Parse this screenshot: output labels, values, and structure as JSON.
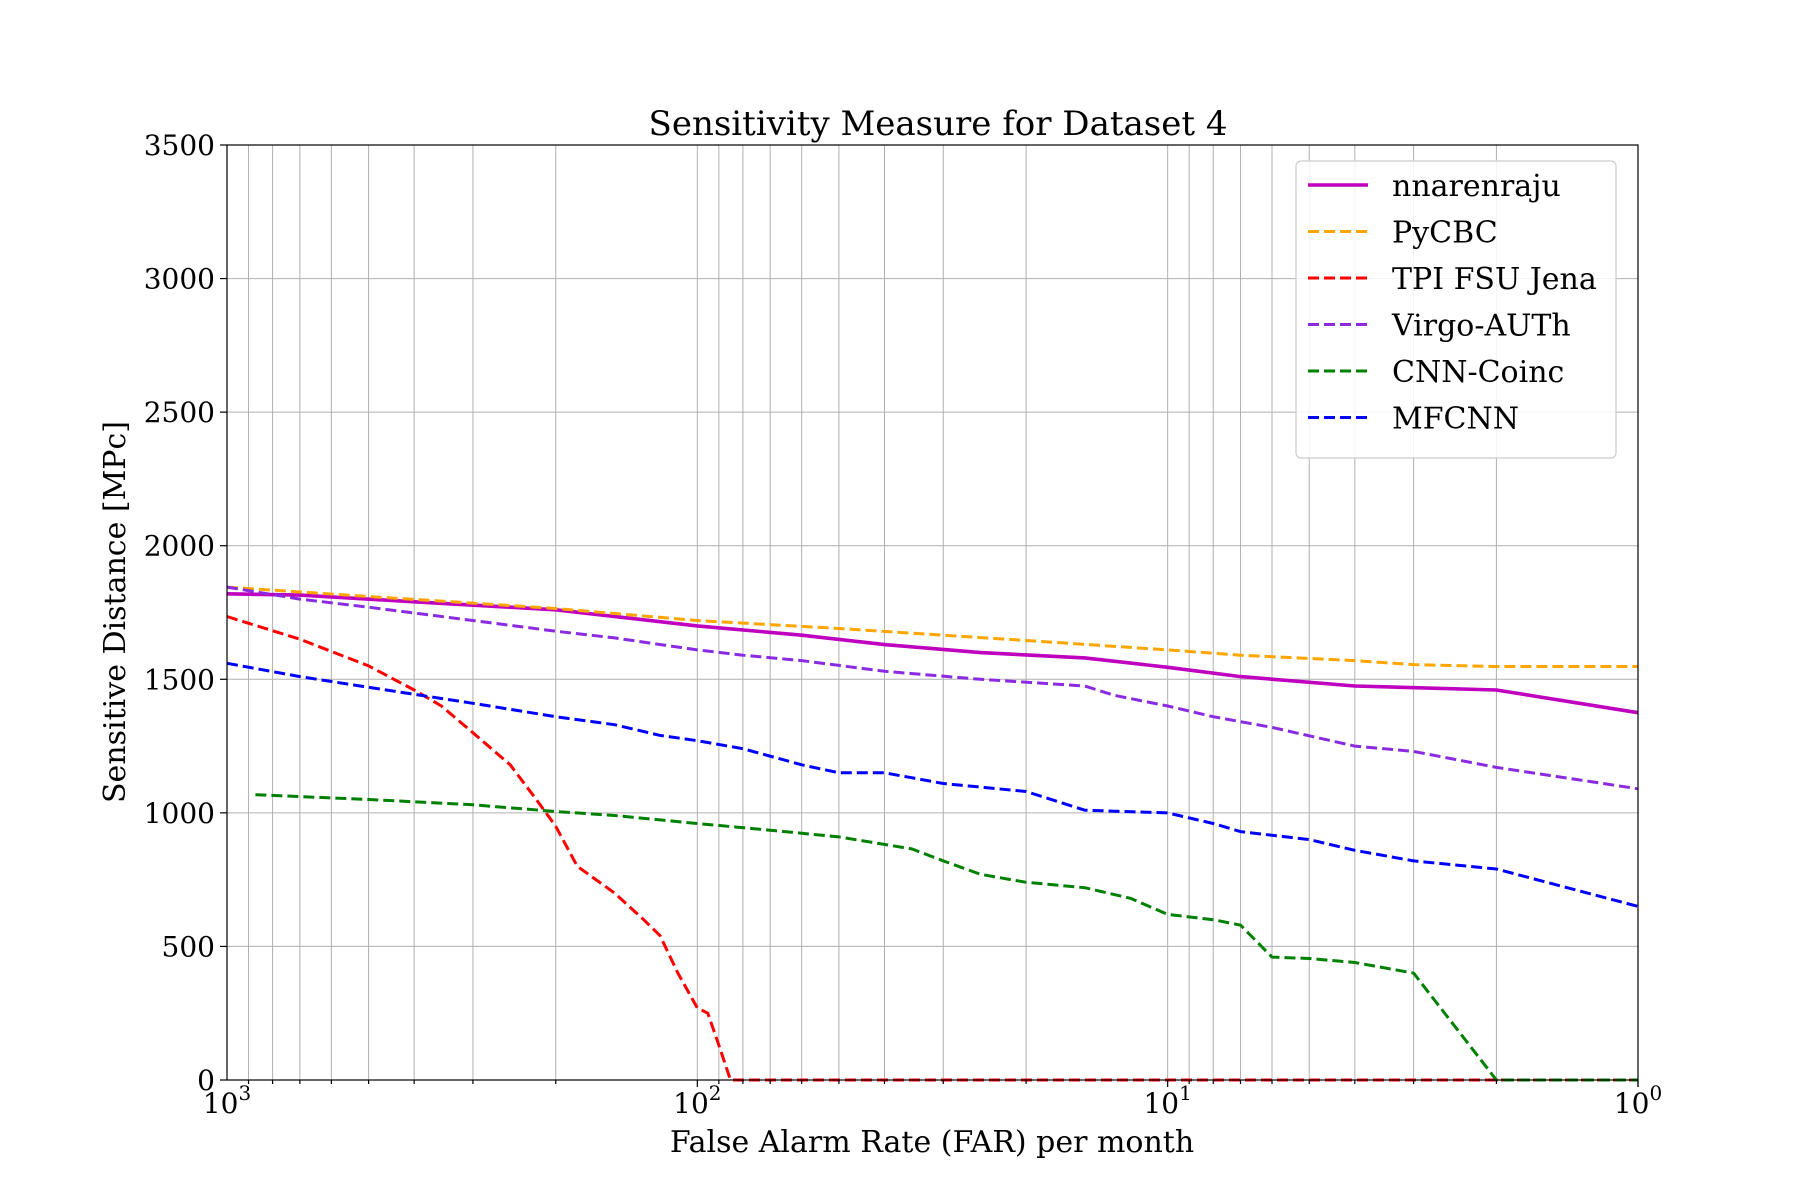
{
  "chart_data": {
    "type": "line",
    "title": "Sensitivity Measure for Dataset 4",
    "xlabel": "False Alarm Rate (FAR) per month",
    "ylabel": "Sensitive Distance [MPc]",
    "xscale": "log",
    "xaxis_direction": "reversed",
    "xlim": [
      1000,
      1
    ],
    "ylim": [
      0,
      3500
    ],
    "xticks": [
      {
        "base": "10",
        "exp": "3"
      },
      {
        "base": "10",
        "exp": "2"
      },
      {
        "base": "10",
        "exp": "1"
      },
      {
        "base": "10",
        "exp": "0"
      }
    ],
    "yticks": [
      "0",
      "500",
      "1000",
      "1500",
      "2000",
      "2500",
      "3000",
      "3500"
    ],
    "grid": true,
    "legend_position": "top-right",
    "series": [
      {
        "name": "nnarenraju",
        "color": "#bf00bf",
        "style": "solid",
        "points": [
          [
            1000,
            1820
          ],
          [
            700,
            1815
          ],
          [
            400,
            1790
          ],
          [
            200,
            1760
          ],
          [
            100,
            1700
          ],
          [
            60,
            1665
          ],
          [
            40,
            1630
          ],
          [
            25,
            1600
          ],
          [
            15,
            1580
          ],
          [
            10,
            1545
          ],
          [
            7,
            1510
          ],
          [
            4,
            1475
          ],
          [
            2,
            1460
          ],
          [
            1,
            1375
          ]
        ]
      },
      {
        "name": "PyCBC",
        "color": "#ffa500",
        "style": "dashed",
        "points": [
          [
            1000,
            1845
          ],
          [
            500,
            1810
          ],
          [
            300,
            1785
          ],
          [
            200,
            1765
          ],
          [
            100,
            1720
          ],
          [
            50,
            1690
          ],
          [
            30,
            1665
          ],
          [
            20,
            1645
          ],
          [
            10,
            1610
          ],
          [
            7,
            1590
          ],
          [
            4,
            1570
          ],
          [
            3,
            1555
          ],
          [
            2,
            1548
          ],
          [
            1,
            1548
          ]
        ]
      },
      {
        "name": "TPI FSU Jena",
        "color": "#ff0000",
        "style": "dashed",
        "points": [
          [
            1000,
            1735
          ],
          [
            700,
            1650
          ],
          [
            500,
            1550
          ],
          [
            400,
            1460
          ],
          [
            350,
            1400
          ],
          [
            300,
            1300
          ],
          [
            250,
            1180
          ],
          [
            220,
            1050
          ],
          [
            200,
            950
          ],
          [
            180,
            800
          ],
          [
            150,
            700
          ],
          [
            130,
            600
          ],
          [
            120,
            540
          ],
          [
            110,
            400
          ],
          [
            100,
            270
          ],
          [
            95,
            250
          ],
          [
            90,
            130
          ],
          [
            85,
            0
          ],
          [
            1,
            0
          ]
        ]
      },
      {
        "name": "Virgo-AUTh",
        "color": "#8a2be2",
        "style": "dashed",
        "points": [
          [
            1000,
            1845
          ],
          [
            700,
            1800
          ],
          [
            500,
            1770
          ],
          [
            300,
            1720
          ],
          [
            200,
            1680
          ],
          [
            150,
            1655
          ],
          [
            100,
            1610
          ],
          [
            80,
            1590
          ],
          [
            60,
            1570
          ],
          [
            40,
            1530
          ],
          [
            25,
            1500
          ],
          [
            15,
            1475
          ],
          [
            13,
            1440
          ],
          [
            10,
            1400
          ],
          [
            8,
            1360
          ],
          [
            6,
            1320
          ],
          [
            4,
            1250
          ],
          [
            3,
            1230
          ],
          [
            2,
            1170
          ],
          [
            1,
            1090
          ]
        ]
      },
      {
        "name": "CNN-Coinc",
        "color": "#008000",
        "style": "dashed",
        "points": [
          [
            870,
            1068
          ],
          [
            500,
            1050
          ],
          [
            300,
            1030
          ],
          [
            200,
            1005
          ],
          [
            150,
            990
          ],
          [
            100,
            960
          ],
          [
            70,
            935
          ],
          [
            50,
            910
          ],
          [
            35,
            865
          ],
          [
            30,
            820
          ],
          [
            25,
            770
          ],
          [
            20,
            740
          ],
          [
            15,
            720
          ],
          [
            12,
            680
          ],
          [
            10,
            620
          ],
          [
            8,
            600
          ],
          [
            7,
            580
          ],
          [
            6,
            460
          ],
          [
            5,
            455
          ],
          [
            4,
            440
          ],
          [
            3,
            400
          ],
          [
            2,
            0
          ],
          [
            1,
            0
          ]
        ]
      },
      {
        "name": "MFCNN",
        "color": "#0000ff",
        "style": "dashed",
        "points": [
          [
            1000,
            1560
          ],
          [
            700,
            1510
          ],
          [
            500,
            1470
          ],
          [
            300,
            1410
          ],
          [
            200,
            1360
          ],
          [
            150,
            1330
          ],
          [
            120,
            1290
          ],
          [
            100,
            1270
          ],
          [
            80,
            1240
          ],
          [
            60,
            1180
          ],
          [
            50,
            1150
          ],
          [
            40,
            1150
          ],
          [
            30,
            1110
          ],
          [
            20,
            1080
          ],
          [
            15,
            1010
          ],
          [
            10,
            1000
          ],
          [
            8,
            960
          ],
          [
            7,
            930
          ],
          [
            5,
            900
          ],
          [
            4,
            860
          ],
          [
            3,
            820
          ],
          [
            2,
            790
          ],
          [
            1,
            650
          ]
        ]
      }
    ]
  }
}
